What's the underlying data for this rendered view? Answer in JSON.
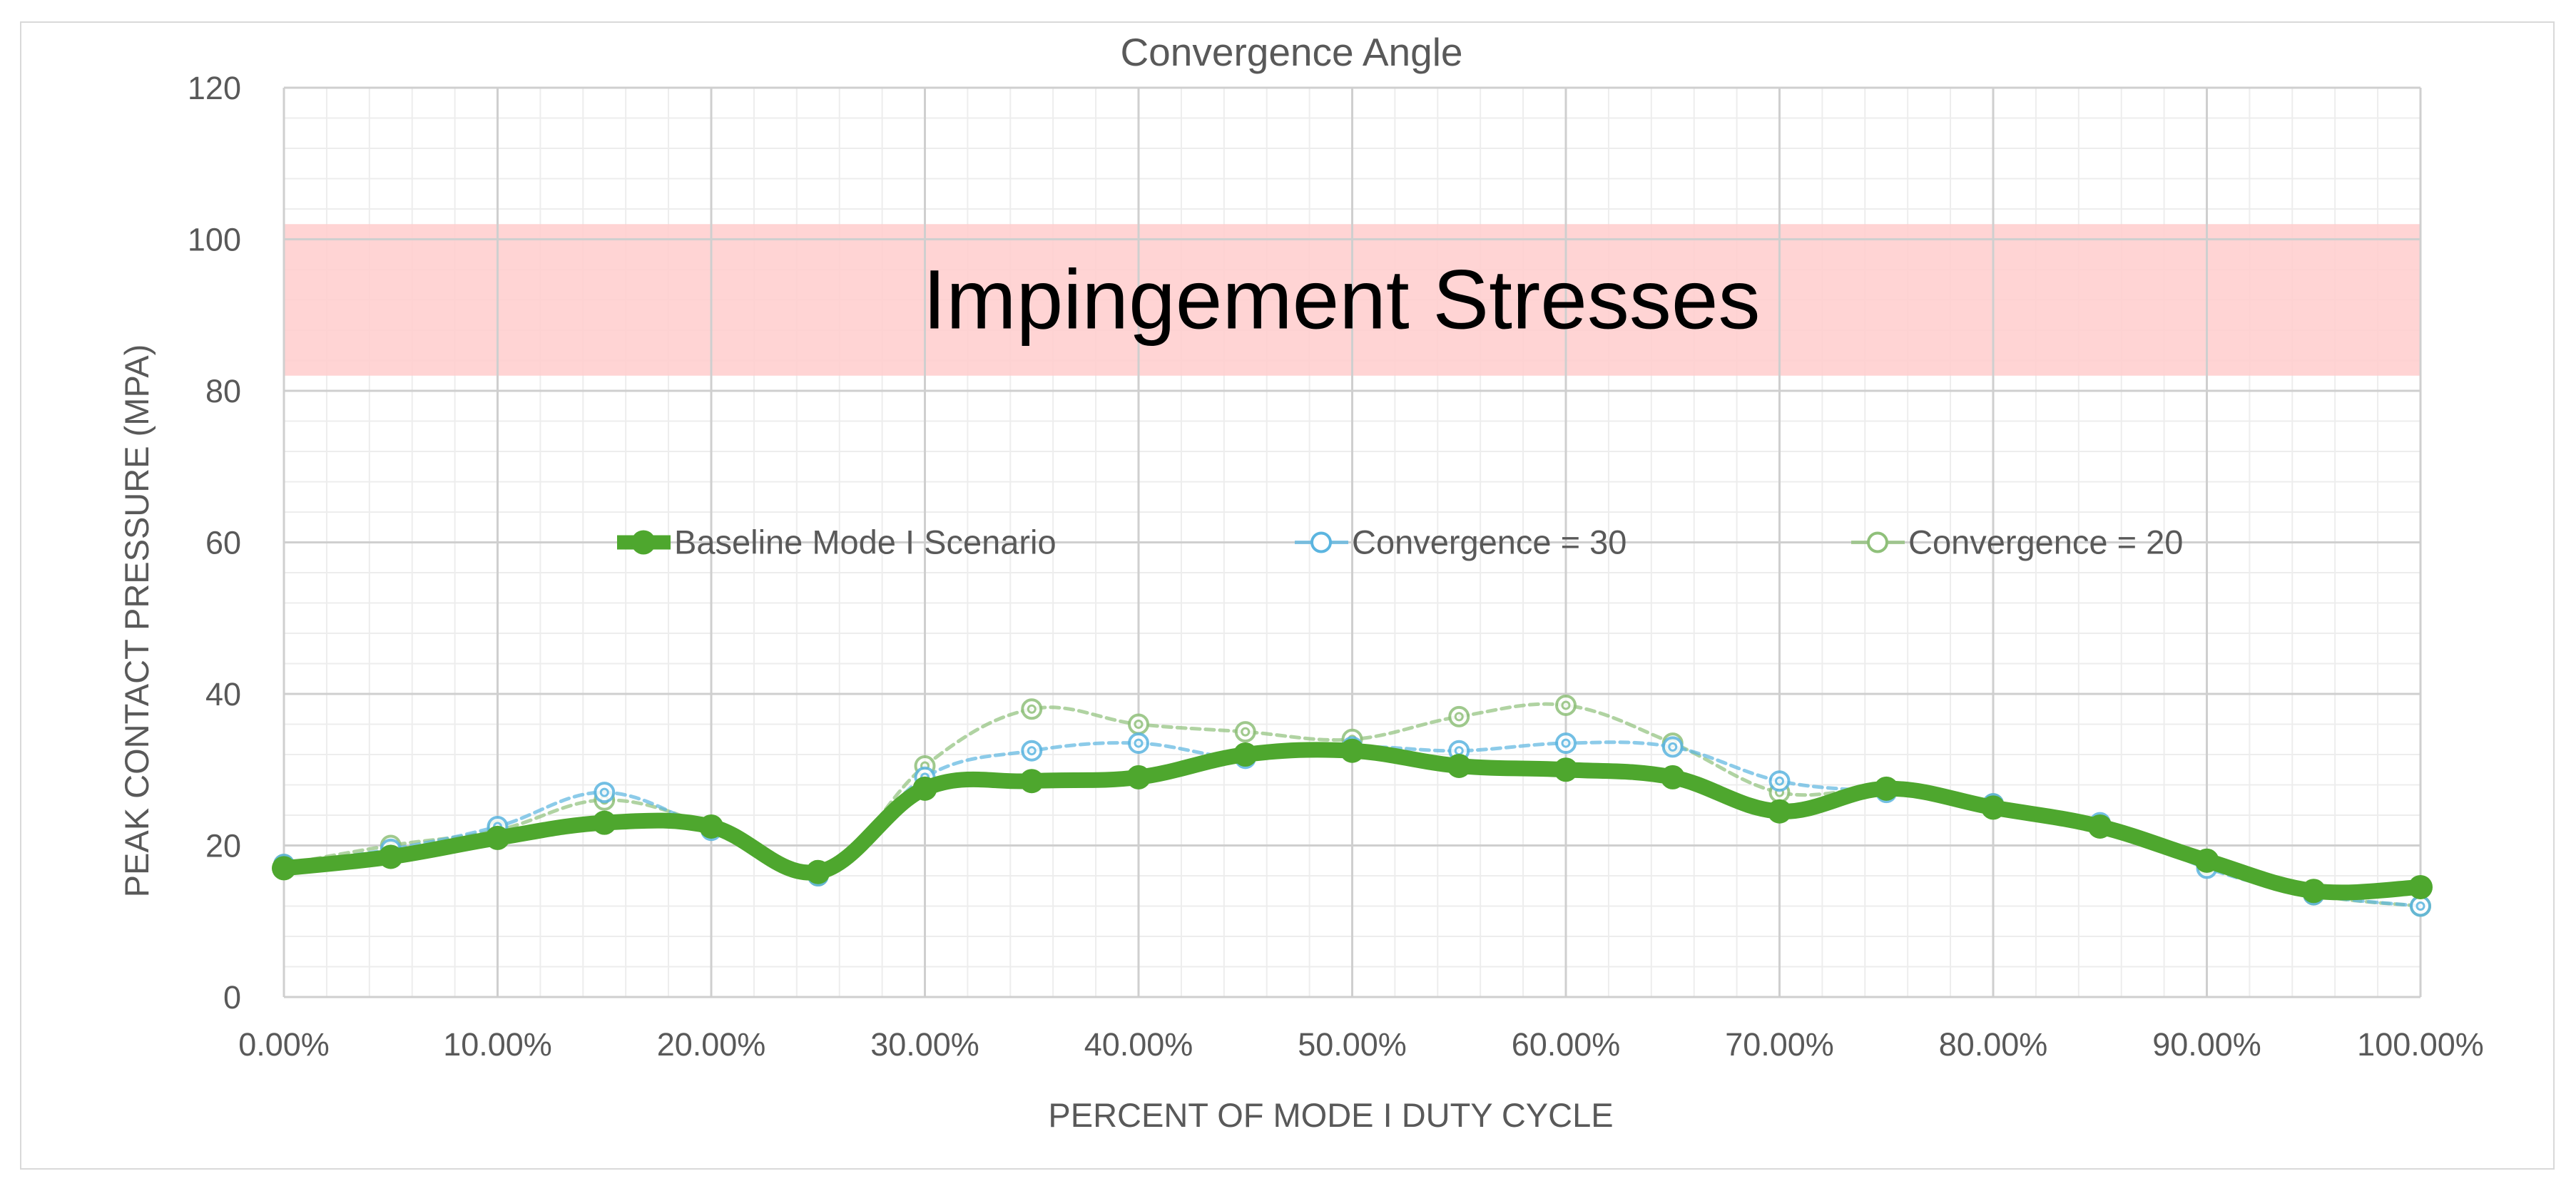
{
  "chart_data": {
    "type": "line",
    "title": "Convergence Angle",
    "xlabel": "PERCENT OF MODE I DUTY CYCLE",
    "ylabel": "PEAK CONTACT PRESSURE (MPA)",
    "xlim": [
      0,
      100
    ],
    "ylim": [
      0,
      120
    ],
    "x_ticks": [
      0,
      10,
      20,
      30,
      40,
      50,
      60,
      70,
      80,
      90,
      100
    ],
    "x_tick_labels": [
      "0.00%",
      "10.00%",
      "20.00%",
      "30.00%",
      "40.00%",
      "50.00%",
      "60.00%",
      "70.00%",
      "80.00%",
      "90.00%",
      "100.00%"
    ],
    "y_ticks": [
      0,
      20,
      40,
      60,
      80,
      100,
      120
    ],
    "y_tick_labels": [
      "0",
      "20",
      "40",
      "60",
      "80",
      "100",
      "120"
    ],
    "grid": true,
    "minor_grid": true,
    "legend_position": "center",
    "x": [
      0,
      5,
      10,
      15,
      20,
      25,
      30,
      35,
      40,
      45,
      50,
      55,
      60,
      65,
      70,
      75,
      80,
      85,
      90,
      95,
      100
    ],
    "series": [
      {
        "name": "Baseline Mode I Scenario",
        "color": "#4ea72e",
        "values": [
          17,
          18.5,
          21,
          23,
          22.5,
          16.5,
          27.5,
          28.5,
          29,
          32,
          32.5,
          30.5,
          30,
          29,
          24.5,
          27.5,
          25,
          22.5,
          18,
          14,
          14.5
        ]
      },
      {
        "name": "Convergence = 30",
        "color": "#5bb5e0",
        "values": [
          17.5,
          19.5,
          22.5,
          27,
          22,
          16,
          29,
          32.5,
          33.5,
          31.5,
          33,
          32.5,
          33.5,
          33,
          28.5,
          27,
          25.5,
          23,
          17,
          13.5,
          12
        ]
      },
      {
        "name": "Convergence = 20",
        "color": "#8fc07a",
        "values": [
          17.5,
          20,
          22,
          26,
          22.5,
          16,
          30.5,
          38,
          36,
          35,
          34,
          37,
          38.5,
          33.5,
          27,
          27.5,
          25.5,
          22.5,
          17.5,
          13.5,
          12
        ]
      }
    ],
    "annotations": [
      {
        "type": "band",
        "label": "Impingement Stresses",
        "y_from": 82,
        "y_to": 102,
        "color": "#ffcccc"
      }
    ]
  }
}
